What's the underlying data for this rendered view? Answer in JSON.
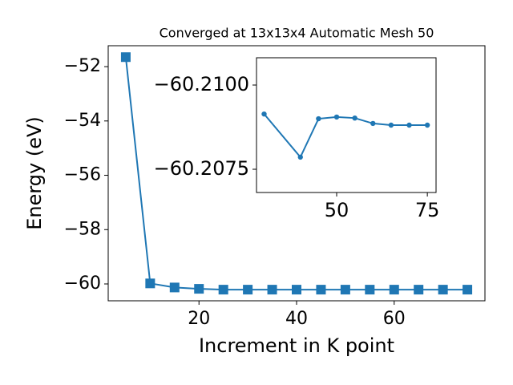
{
  "chart_data": [
    {
      "type": "line",
      "title": "Converged at 13x13x4 Automatic Mesh 50",
      "x_label": "Increment in K point",
      "y_label": "Energy (eV)",
      "x": [
        5,
        10,
        15,
        20,
        25,
        30,
        35,
        40,
        45,
        50,
        55,
        60,
        65,
        70,
        75
      ],
      "values": [
        -51.65,
        -59.98,
        -60.13,
        -60.18,
        -60.21,
        -60.21,
        -60.21,
        -60.21,
        -60.21,
        -60.21,
        -60.21,
        -60.21,
        -60.21,
        -60.21,
        -60.21
      ],
      "color": "#1f77b4",
      "marker": "square",
      "xlim": [
        1.4,
        78.6
      ],
      "ylim": [
        -60.62,
        -51.23
      ],
      "xticks": [
        20,
        40,
        60
      ],
      "yticks": [
        {
          "value": -60,
          "label": "−60"
        },
        {
          "value": -58,
          "label": "−58"
        },
        {
          "value": -56,
          "label": "−56"
        },
        {
          "value": -54,
          "label": "−54"
        },
        {
          "value": -52,
          "label": "−52"
        }
      ]
    },
    {
      "type": "line",
      "x": [
        30,
        40,
        45,
        50,
        55,
        60,
        65,
        70,
        75
      ],
      "values": [
        -60.20914,
        -60.20786,
        -60.209,
        -60.20905,
        -60.20902,
        -60.20886,
        -60.20881,
        -60.20881,
        -60.20881
      ],
      "color": "#1f77b4",
      "marker": "circle",
      "xlim": [
        27.9,
        77.4
      ],
      "ylim": [
        -60.20681,
        -60.21081
      ],
      "xticks": [
        50,
        75
      ],
      "yticks": [
        {
          "value": -60.21,
          "label": "−60.2100"
        },
        {
          "value": -60.2075,
          "label": "−60.2075"
        }
      ]
    }
  ]
}
